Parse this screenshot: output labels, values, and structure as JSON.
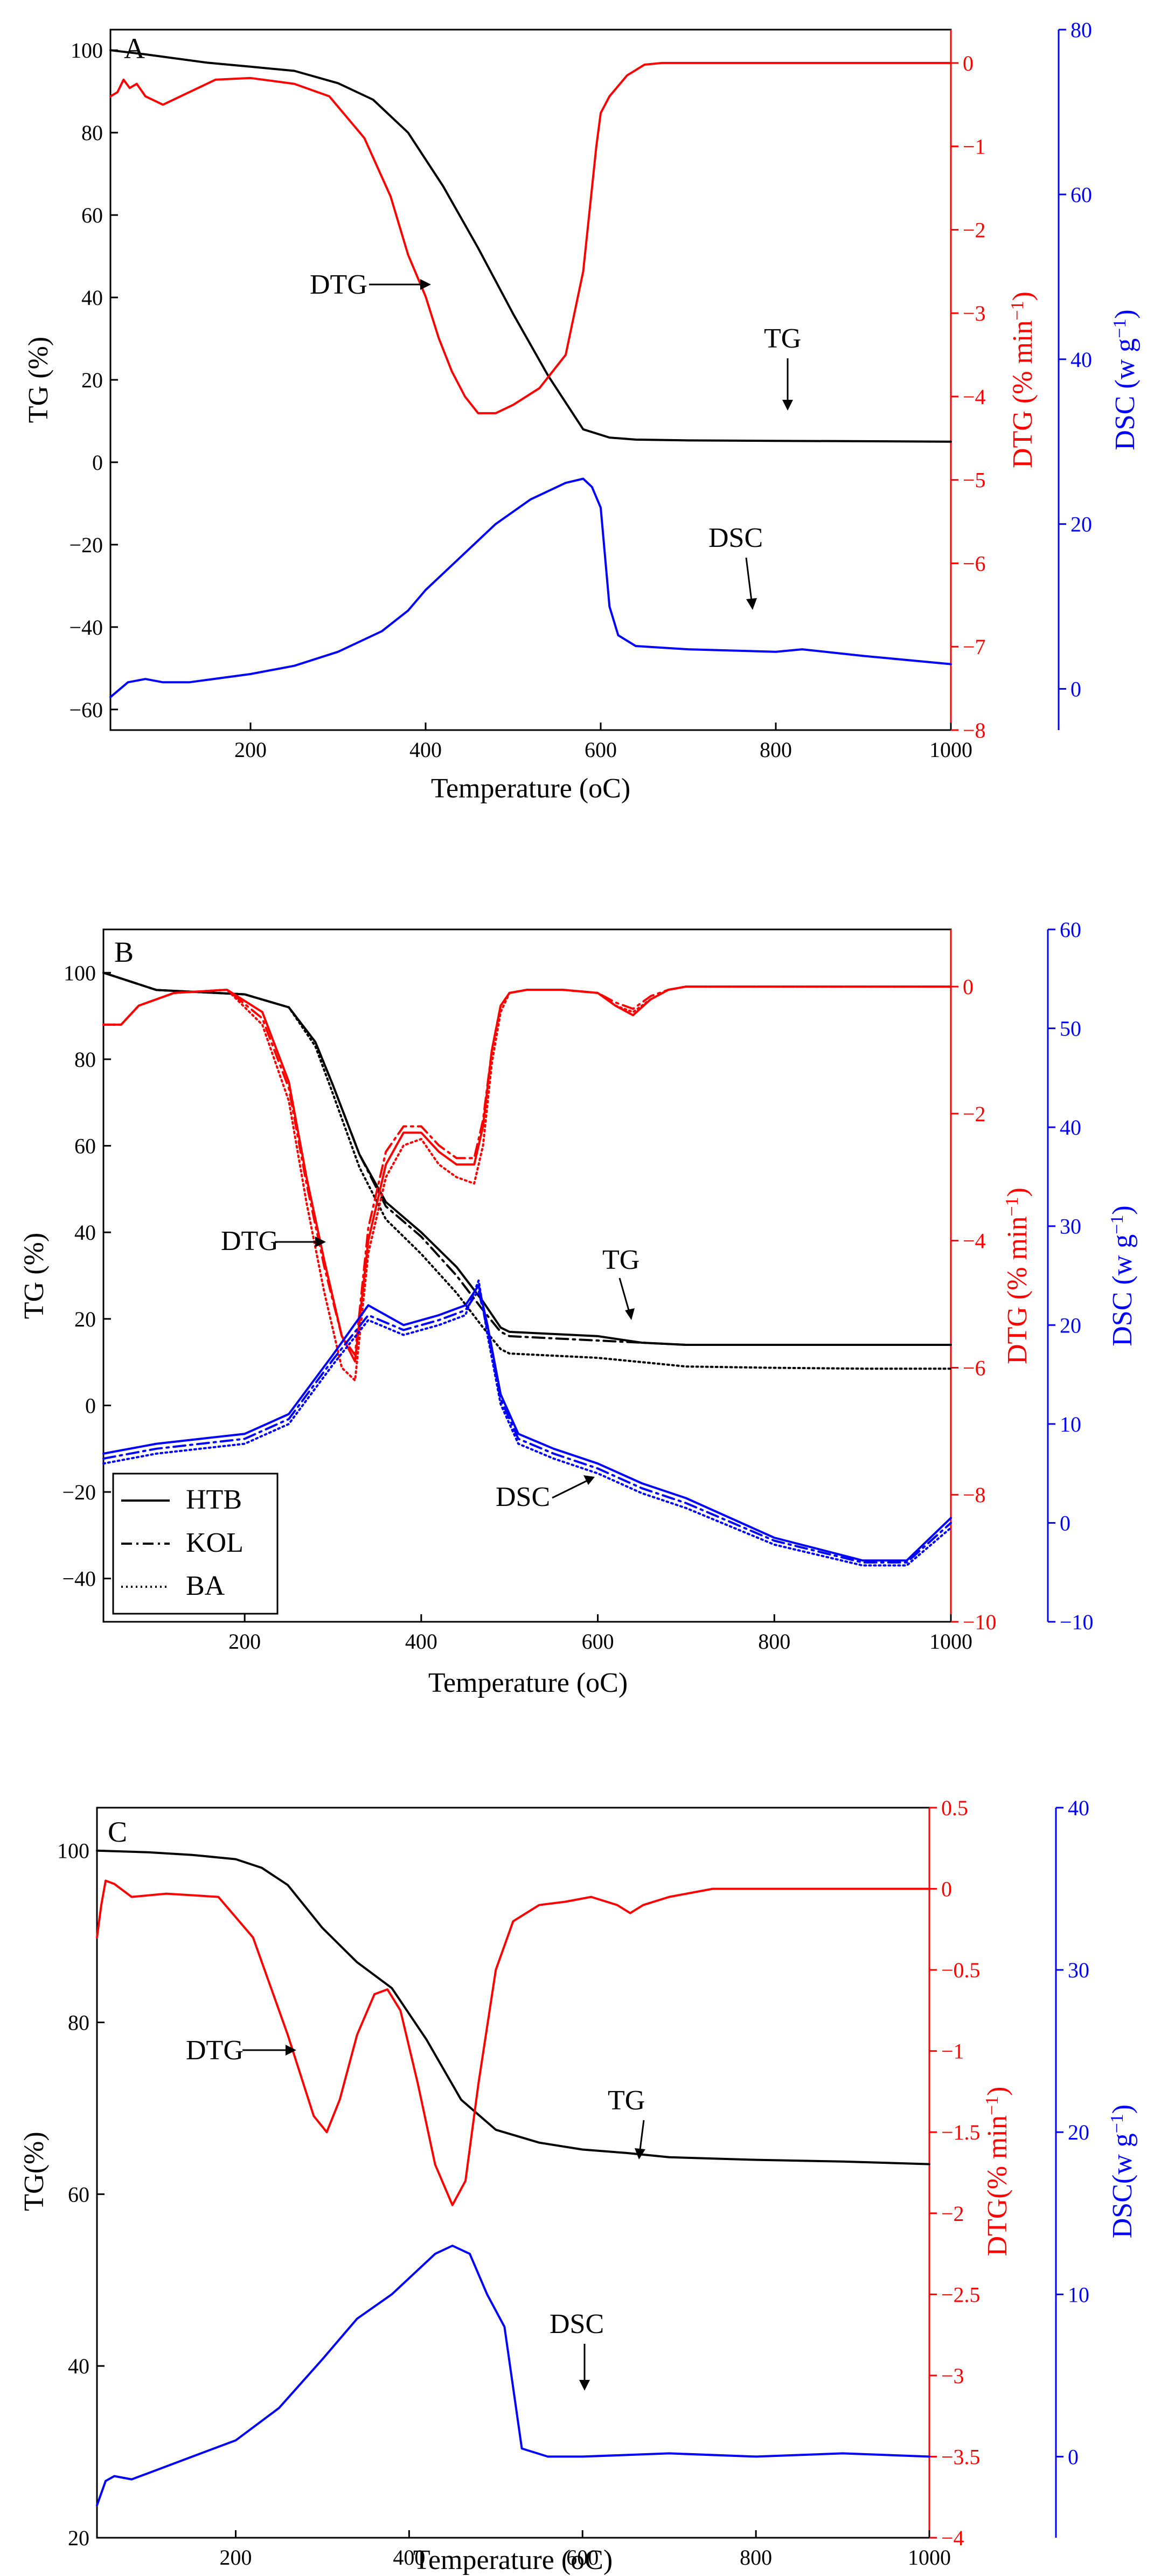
{
  "colors": {
    "tg": "#000000",
    "dtg": "#ff0000",
    "dsc": "#0000ff"
  },
  "chart_data": [
    {
      "type": "line",
      "panel": "A",
      "xlabel": "Temperature (",
      "xunit": "oC",
      "xlim": [
        40,
        1000
      ],
      "xticks": [
        200,
        400,
        600,
        800,
        1000
      ],
      "y_tg": {
        "label": "TG (%)",
        "lim": [
          -65,
          105
        ],
        "ticks": [
          -60,
          -40,
          -20,
          0,
          20,
          40,
          60,
          80,
          100
        ]
      },
      "y_dtg": {
        "label": "DTG (% min",
        "sup": "−1",
        "close": ")",
        "lim": [
          -8,
          0.4
        ],
        "ticks": [
          -8,
          -7,
          -6,
          -5,
          -4,
          -3,
          -2,
          -1,
          0
        ]
      },
      "y_dsc": {
        "label": "DSC (w g",
        "sup": "−1",
        "close": ")",
        "lim": [
          -5,
          80
        ],
        "ticks": [
          0,
          20,
          40,
          60,
          80
        ]
      },
      "series": [
        {
          "name": "TG",
          "axis": "tg",
          "style": "solid",
          "x": [
            40,
            80,
            150,
            200,
            250,
            300,
            340,
            380,
            420,
            460,
            500,
            540,
            580,
            610,
            640,
            700,
            800,
            900,
            1000
          ],
          "y": [
            100,
            99,
            97,
            96,
            95,
            92,
            88,
            80,
            67,
            52,
            36,
            21,
            8,
            6,
            5.5,
            5.3,
            5.2,
            5.1,
            5
          ]
        },
        {
          "name": "DTG",
          "axis": "dtg",
          "style": "solid",
          "x": [
            40,
            48,
            55,
            62,
            70,
            80,
            100,
            130,
            160,
            200,
            250,
            290,
            330,
            360,
            380,
            400,
            415,
            430,
            445,
            460,
            480,
            500,
            530,
            560,
            580,
            595,
            600,
            610,
            630,
            650,
            670,
            700,
            800,
            900,
            1000
          ],
          "y": [
            -0.4,
            -0.35,
            -0.2,
            -0.3,
            -0.25,
            -0.4,
            -0.5,
            -0.35,
            -0.2,
            -0.18,
            -0.25,
            -0.4,
            -0.9,
            -1.6,
            -2.3,
            -2.8,
            -3.3,
            -3.7,
            -4.0,
            -4.2,
            -4.2,
            -4.1,
            -3.9,
            -3.5,
            -2.5,
            -1.0,
            -0.6,
            -0.4,
            -0.15,
            -0.02,
            0,
            0,
            0,
            0,
            0
          ]
        },
        {
          "name": "DSC",
          "axis": "dsc",
          "style": "solid",
          "x": [
            40,
            60,
            80,
            100,
            130,
            200,
            250,
            300,
            350,
            380,
            400,
            420,
            440,
            480,
            520,
            560,
            580,
            590,
            600,
            610,
            620,
            640,
            700,
            800,
            830,
            900,
            1000
          ],
          "y": [
            -1,
            0.8,
            1.2,
            0.8,
            0.8,
            1.8,
            2.8,
            4.5,
            7,
            9.5,
            12,
            14,
            16,
            20,
            23,
            25,
            25.5,
            24.5,
            22,
            10,
            6.5,
            5.2,
            4.8,
            4.5,
            4.8,
            4,
            3
          ]
        }
      ],
      "annotations": [
        "DTG",
        "TG",
        "DSC"
      ]
    },
    {
      "type": "line",
      "panel": "B",
      "xlabel": "Temperature (",
      "xunit": "oC",
      "xlim": [
        40,
        1000
      ],
      "xticks": [
        200,
        400,
        600,
        800,
        1000
      ],
      "y_tg": {
        "label": "TG (%)",
        "lim": [
          -50,
          110
        ],
        "ticks": [
          -40,
          -20,
          0,
          20,
          40,
          60,
          80,
          100
        ]
      },
      "y_dtg": {
        "label": "DTG (% min",
        "sup": "−1",
        "close": ")",
        "lim": [
          -10,
          0.9
        ],
        "ticks": [
          -10,
          -8,
          -6,
          -4,
          -2,
          0
        ]
      },
      "y_dsc": {
        "label": "DSC (w g",
        "sup": "−1",
        "close": ")",
        "lim": [
          -10,
          60
        ],
        "ticks": [
          -10,
          0,
          10,
          20,
          30,
          40,
          50,
          60
        ]
      },
      "legend": [
        "HTB",
        "KOL",
        "BA"
      ],
      "series": [
        {
          "name": "HTB",
          "quantity": "TG",
          "axis": "tg",
          "style": "solid",
          "x": [
            40,
            100,
            200,
            250,
            280,
            300,
            330,
            360,
            400,
            440,
            470,
            490,
            500,
            550,
            600,
            650,
            700,
            800,
            900,
            1000
          ],
          "y": [
            100,
            96,
            95,
            92,
            84,
            74,
            58,
            47,
            40,
            32,
            24,
            18,
            17,
            16.5,
            16,
            14.5,
            14,
            14,
            14,
            14
          ]
        },
        {
          "name": "KOL",
          "quantity": "TG",
          "axis": "tg",
          "style": "dashdot",
          "x": [
            40,
            100,
            200,
            250,
            280,
            300,
            330,
            360,
            400,
            440,
            470,
            490,
            500,
            550,
            600,
            650,
            700,
            800,
            900,
            1000
          ],
          "y": [
            100,
            96,
            95,
            92,
            84,
            74,
            58,
            46,
            39,
            30,
            22,
            17,
            16,
            15.5,
            15,
            14.5,
            14,
            14,
            14,
            14
          ]
        },
        {
          "name": "BA",
          "quantity": "TG",
          "axis": "tg",
          "style": "dotted",
          "x": [
            40,
            100,
            200,
            250,
            280,
            300,
            330,
            360,
            400,
            440,
            470,
            490,
            500,
            550,
            600,
            650,
            700,
            800,
            900,
            1000
          ],
          "y": [
            100,
            96,
            95,
            92,
            83,
            72,
            55,
            43,
            35,
            26,
            18,
            13,
            12,
            11.5,
            11,
            10,
            9,
            8.7,
            8.5,
            8.5
          ]
        },
        {
          "name": "HTB",
          "quantity": "DTG",
          "axis": "dtg",
          "style": "solid",
          "x": [
            40,
            60,
            80,
            120,
            180,
            220,
            250,
            270,
            290,
            310,
            325,
            340,
            360,
            380,
            400,
            420,
            440,
            460,
            470,
            480,
            490,
            500,
            520,
            560,
            600,
            620,
            640,
            660,
            680,
            700,
            800,
            900,
            1000
          ],
          "y": [
            -0.6,
            -0.6,
            -0.3,
            -0.1,
            -0.05,
            -0.4,
            -1.5,
            -3.0,
            -4.3,
            -5.5,
            -5.9,
            -4.0,
            -2.8,
            -2.3,
            -2.3,
            -2.6,
            -2.8,
            -2.8,
            -2.2,
            -1.0,
            -0.3,
            -0.1,
            -0.05,
            -0.05,
            -0.1,
            -0.3,
            -0.45,
            -0.2,
            -0.05,
            0,
            0,
            0,
            0
          ]
        },
        {
          "name": "KOL",
          "quantity": "DTG",
          "axis": "dtg",
          "style": "dashdot",
          "x": [
            40,
            60,
            80,
            120,
            180,
            220,
            250,
            270,
            290,
            310,
            325,
            340,
            360,
            380,
            400,
            420,
            440,
            460,
            470,
            480,
            490,
            500,
            520,
            560,
            600,
            620,
            640,
            660,
            680,
            700,
            800,
            900,
            1000
          ],
          "y": [
            -0.6,
            -0.6,
            -0.3,
            -0.1,
            -0.05,
            -0.5,
            -1.6,
            -3.1,
            -4.4,
            -5.5,
            -5.8,
            -3.8,
            -2.6,
            -2.2,
            -2.2,
            -2.5,
            -2.7,
            -2.7,
            -2.1,
            -1.0,
            -0.3,
            -0.1,
            -0.05,
            -0.05,
            -0.1,
            -0.25,
            -0.35,
            -0.15,
            -0.05,
            0,
            0,
            0,
            0
          ]
        },
        {
          "name": "BA",
          "quantity": "DTG",
          "axis": "dtg",
          "style": "dotted",
          "x": [
            40,
            60,
            80,
            120,
            180,
            220,
            250,
            270,
            290,
            310,
            325,
            340,
            360,
            380,
            400,
            420,
            440,
            460,
            470,
            480,
            490,
            500,
            520,
            560,
            600,
            620,
            640,
            660,
            680,
            700,
            800,
            900,
            1000
          ],
          "y": [
            -0.6,
            -0.6,
            -0.3,
            -0.1,
            -0.05,
            -0.6,
            -1.8,
            -3.4,
            -4.8,
            -6.0,
            -6.2,
            -4.2,
            -3.0,
            -2.5,
            -2.4,
            -2.8,
            -3.0,
            -3.1,
            -2.5,
            -1.2,
            -0.4,
            -0.1,
            -0.05,
            -0.05,
            -0.1,
            -0.3,
            -0.4,
            -0.2,
            -0.05,
            0,
            0,
            0,
            0
          ]
        },
        {
          "name": "HTB",
          "quantity": "DSC",
          "axis": "dsc",
          "style": "solid",
          "x": [
            40,
            100,
            200,
            250,
            300,
            340,
            380,
            420,
            450,
            465,
            475,
            490,
            510,
            550,
            600,
            650,
            700,
            800,
            900,
            950,
            1000
          ],
          "y": [
            7,
            8,
            9,
            11,
            17,
            22,
            20,
            21,
            22,
            24,
            20,
            13,
            9,
            7.5,
            6,
            4,
            2.5,
            -1.5,
            -3.8,
            -3.8,
            0.5
          ]
        },
        {
          "name": "KOL",
          "quantity": "DSC",
          "axis": "dsc",
          "style": "dashdot",
          "x": [
            40,
            100,
            200,
            250,
            300,
            340,
            380,
            420,
            450,
            465,
            475,
            490,
            510,
            550,
            600,
            650,
            700,
            800,
            900,
            950,
            1000
          ],
          "y": [
            6.5,
            7.5,
            8.5,
            10.5,
            16.5,
            21,
            19.5,
            20.5,
            21.5,
            23.5,
            19.5,
            12.5,
            8.5,
            7,
            5.5,
            3.5,
            2,
            -1.8,
            -4,
            -4,
            0
          ]
        },
        {
          "name": "BA",
          "quantity": "DSC",
          "axis": "dsc",
          "style": "dotted",
          "x": [
            40,
            100,
            200,
            250,
            300,
            340,
            380,
            420,
            450,
            465,
            475,
            490,
            510,
            550,
            600,
            650,
            700,
            800,
            900,
            950,
            1000
          ],
          "y": [
            6,
            7,
            8,
            10,
            16,
            20.5,
            19,
            20,
            21,
            24.5,
            19,
            12,
            8,
            6.5,
            5,
            3,
            1.5,
            -2.2,
            -4.3,
            -4.3,
            -0.5
          ]
        }
      ],
      "annotations": [
        "DTG",
        "TG",
        "DSC"
      ]
    },
    {
      "type": "line",
      "panel": "C",
      "xlabel": "Temperature (",
      "xunit": "oC",
      "xlim": [
        40,
        1000
      ],
      "xticks": [
        200,
        400,
        600,
        800,
        1000
      ],
      "y_tg": {
        "label": "TG(%)",
        "lim": [
          20,
          105
        ],
        "ticks": [
          20,
          40,
          60,
          80,
          100
        ]
      },
      "y_dtg": {
        "label": "DTG(% min",
        "sup": "−1",
        "close": ")",
        "lim": [
          -4.0,
          0.5
        ],
        "ticks": [
          0.5,
          0.0,
          -0.5,
          -1.0,
          -1.5,
          -2.0,
          -2.5,
          -3.0,
          -3.5,
          -4.0
        ]
      },
      "y_dsc": {
        "label": "DSC(w g",
        "sup": "−1",
        "close": ")",
        "lim": [
          -5,
          40
        ],
        "ticks": [
          0,
          10,
          20,
          30,
          40
        ]
      },
      "series": [
        {
          "name": "TG",
          "axis": "tg",
          "style": "solid",
          "x": [
            40,
            100,
            150,
            200,
            230,
            260,
            300,
            340,
            380,
            420,
            460,
            500,
            550,
            600,
            650,
            700,
            800,
            900,
            1000
          ],
          "y": [
            100,
            99.8,
            99.5,
            99,
            98,
            96,
            91,
            87,
            84,
            78,
            71,
            67.5,
            66,
            65.2,
            64.8,
            64.3,
            64,
            63.8,
            63.5
          ]
        },
        {
          "name": "DTG",
          "axis": "dtg",
          "style": "solid",
          "x": [
            40,
            45,
            50,
            60,
            80,
            120,
            180,
            220,
            260,
            290,
            305,
            320,
            340,
            360,
            375,
            390,
            410,
            430,
            450,
            465,
            480,
            500,
            520,
            550,
            580,
            610,
            640,
            655,
            670,
            700,
            750,
            800,
            900,
            1000
          ],
          "y": [
            -0.3,
            -0.1,
            0.05,
            0.03,
            -0.05,
            -0.03,
            -0.05,
            -0.3,
            -0.9,
            -1.4,
            -1.5,
            -1.3,
            -0.9,
            -0.65,
            -0.62,
            -0.75,
            -1.2,
            -1.7,
            -1.95,
            -1.8,
            -1.2,
            -0.5,
            -0.2,
            -0.1,
            -0.08,
            -0.05,
            -0.1,
            -0.15,
            -0.1,
            -0.05,
            0,
            0,
            0,
            0
          ]
        },
        {
          "name": "DSC",
          "axis": "dsc",
          "style": "solid",
          "x": [
            40,
            50,
            60,
            80,
            100,
            150,
            200,
            250,
            300,
            340,
            380,
            410,
            430,
            450,
            470,
            490,
            510,
            530,
            560,
            600,
            700,
            800,
            900,
            1000
          ],
          "y": [
            -3,
            -1.5,
            -1.2,
            -1.4,
            -1,
            0,
            1,
            3,
            6,
            8.5,
            10,
            11.5,
            12.5,
            13,
            12.5,
            10,
            8,
            0.5,
            0,
            0,
            0.2,
            0,
            0.2,
            0
          ]
        }
      ],
      "annotations": [
        "DTG",
        "TG",
        "DSC"
      ]
    }
  ]
}
